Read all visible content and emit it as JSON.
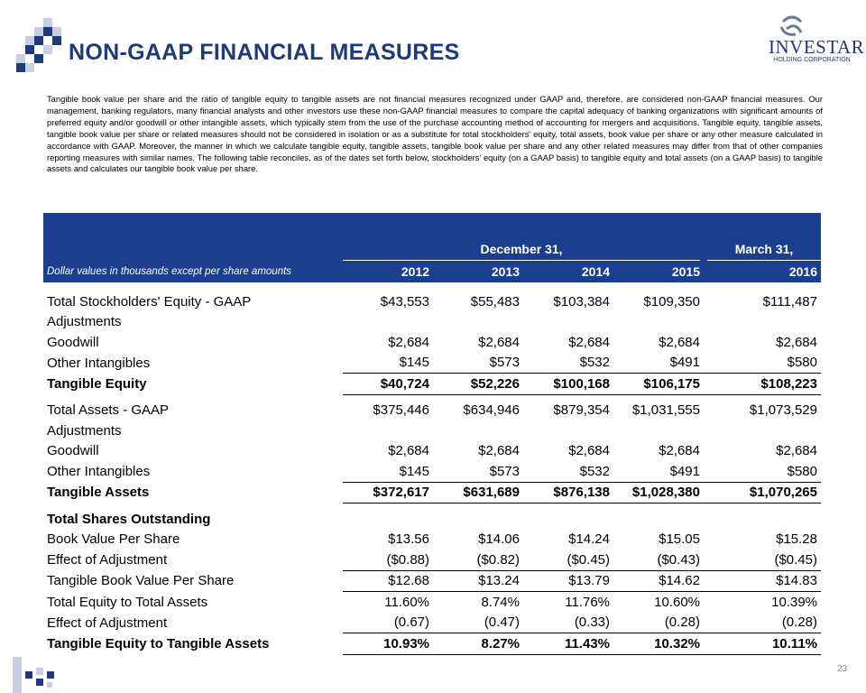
{
  "header": {
    "title": "NON-GAAP FINANCIAL MEASURES",
    "logo": "INVESTAR",
    "logo_sub": "HOLDING CORPORATION"
  },
  "intro": "Tangible book value per share and the ratio of tangible equity to tangible assets are not financial measures recognized under GAAP and, therefore, are considered non-GAAP financial measures. Our management, banking regulators, many financial analysts and other investors use these non-GAAP financial measures to compare the capital adequacy of banking organizations with significant amounts of preferred equity and/or goodwill or other intangible assets, which typically stem from the use of the purchase accounting method of accounting for mergers and acquisitions. Tangible equity, tangible assets, tangible book value per share or related measures should not be considered in isolation or as a substitute for total stockholders' equity, total assets, book value per share or any other measure calculated in accordance with GAAP. Moreover, the manner in which we calculate tangible equity, tangible assets, tangible book value per share and any other related measures may differ from that of other companies reporting measures with similar names. The following table reconciles, as of the dates set forth below, stockholders' equity (on a GAAP basis) to tangible equity and total assets (on a GAAP basis) to tangible assets and calculates our tangible book value per share.",
  "table": {
    "group_headers": [
      "December 31,",
      "March 31,"
    ],
    "note": "Dollar values in thousands except per share amounts",
    "years": [
      "2012",
      "2013",
      "2014",
      "2015",
      "2016"
    ],
    "rows": [
      {
        "label": "Total Stockholders' Equity - GAAP",
        "values": [
          "$43,553",
          "$55,483",
          "$103,384",
          "$109,350",
          "$111,487"
        ]
      },
      {
        "label": "Adjustments"
      },
      {
        "label": "Goodwill",
        "values": [
          "$2,684",
          "$2,684",
          "$2,684",
          "$2,684",
          "$2,684"
        ]
      },
      {
        "label": "Other Intangibles",
        "values": [
          "$145",
          "$573",
          "$532",
          "$491",
          "$580"
        ],
        "underline": true
      },
      {
        "label": "Tangible Equity",
        "values": [
          "$40,724",
          "$52,226",
          "$100,168",
          "$106,175",
          "$108,223"
        ],
        "bold": true,
        "underline": true
      },
      {
        "label": "Total Assets - GAAP",
        "values": [
          "$375,446",
          "$634,946",
          "$879,354",
          "$1,031,555",
          "$1,073,529"
        ]
      },
      {
        "label": "Adjustments"
      },
      {
        "label": "Goodwill",
        "values": [
          "$2,684",
          "$2,684",
          "$2,684",
          "$2,684",
          "$2,684"
        ]
      },
      {
        "label": "Other Intangibles",
        "values": [
          "$145",
          "$573",
          "$532",
          "$491",
          "$580"
        ],
        "underline": true
      },
      {
        "label": "Tangible Assets",
        "values": [
          "$372,617",
          "$631,689",
          "$876,138",
          "$1,028,380",
          "$1,070,265"
        ],
        "bold": true,
        "underline": true
      },
      {
        "label": "Total Shares Outstanding",
        "bold": true
      },
      {
        "label": "Book Value Per Share",
        "values": [
          "$13.56",
          "$14.06",
          "$14.24",
          "$15.05",
          "$15.28"
        ]
      },
      {
        "label": "Effect of Adjustment",
        "values": [
          "($0.88)",
          "($0.82)",
          "($0.45)",
          "($0.43)",
          "($0.45)"
        ],
        "underline": true
      },
      {
        "label": "Tangible Book Value Per Share",
        "values": [
          "$12.68",
          "$13.24",
          "$13.79",
          "$14.62",
          "$14.83"
        ],
        "underline": true
      },
      {
        "label": "Total Equity to Total Assets",
        "values": [
          "11.60%",
          "8.74%",
          "11.76%",
          "10.60%",
          "10.39%"
        ]
      },
      {
        "label": "Effect of Adjustment",
        "values": [
          "(0.67)",
          "(0.47)",
          "(0.33)",
          "(0.28)",
          "(0.28)"
        ],
        "underline": true
      },
      {
        "label": "Tangible Equity to Tangible Assets",
        "values": [
          "10.93%",
          "8.27%",
          "11.43%",
          "10.32%",
          "10.11%"
        ],
        "bold": true,
        "underline": true
      }
    ]
  },
  "page_number": "23"
}
